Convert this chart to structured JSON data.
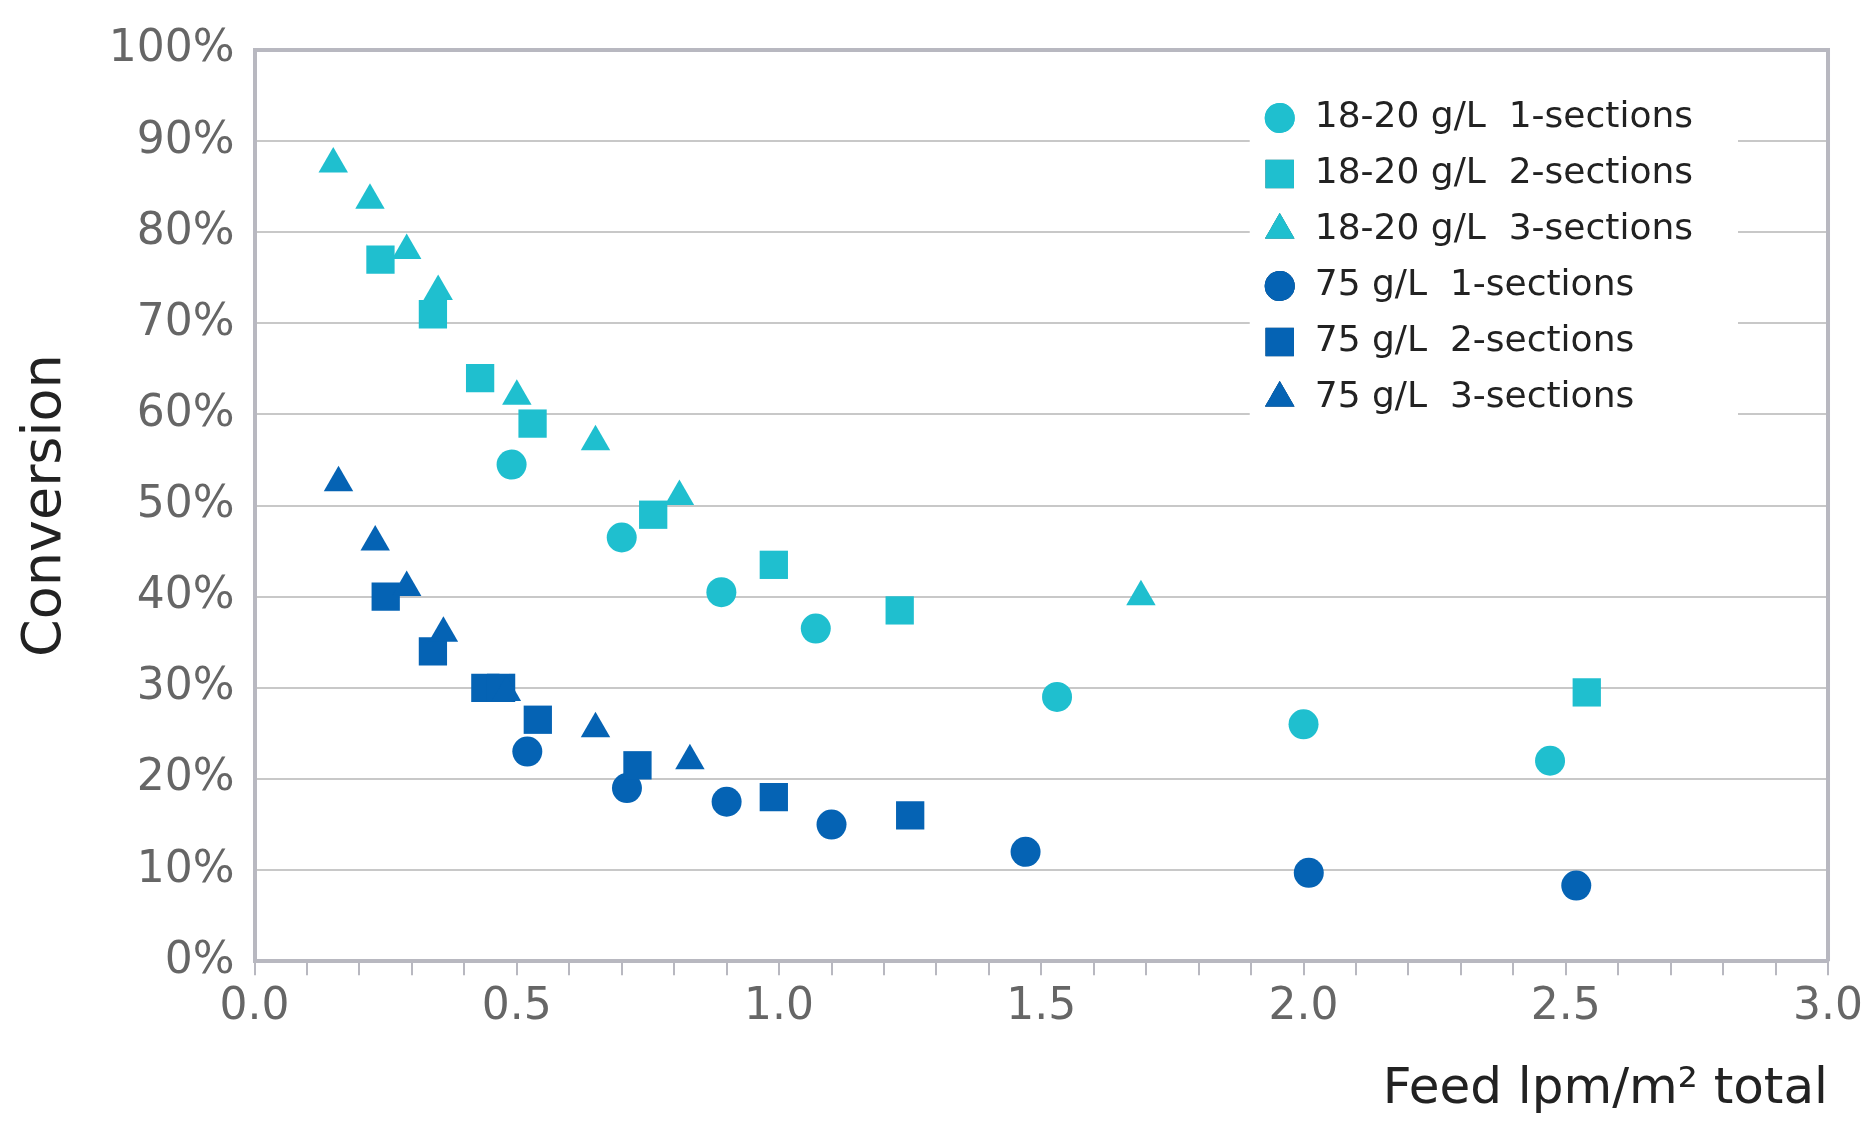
{
  "chart_data": {
    "type": "scatter",
    "xlabel": "Feed lpm/m² total",
    "ylabel": "Conversion",
    "xlim": [
      0,
      3
    ],
    "xticks": [
      {
        "value": 0,
        "label": "0.0"
      },
      {
        "value": 0.1,
        "label": null
      },
      {
        "value": 0.2,
        "label": null
      },
      {
        "value": 0.3,
        "label": null
      },
      {
        "value": 0.4,
        "label": null
      },
      {
        "value": 0.5,
        "label": "0.5"
      },
      {
        "value": 0.6,
        "label": null
      },
      {
        "value": 0.7,
        "label": null
      },
      {
        "value": 0.8,
        "label": null
      },
      {
        "value": 0.9,
        "label": null
      },
      {
        "value": 1,
        "label": "1.0"
      },
      {
        "value": 1.1,
        "label": null
      },
      {
        "value": 1.2,
        "label": null
      },
      {
        "value": 1.3,
        "label": null
      },
      {
        "value": 1.4,
        "label": null
      },
      {
        "value": 1.5,
        "label": "1.5"
      },
      {
        "value": 1.6,
        "label": null
      },
      {
        "value": 1.7,
        "label": null
      },
      {
        "value": 1.8,
        "label": null
      },
      {
        "value": 1.9,
        "label": null
      },
      {
        "value": 2,
        "label": "2.0"
      },
      {
        "value": 2.1,
        "label": null
      },
      {
        "value": 2.2,
        "label": null
      },
      {
        "value": 2.3,
        "label": null
      },
      {
        "value": 2.4,
        "label": null
      },
      {
        "value": 2.5,
        "label": "2.5"
      },
      {
        "value": 2.6,
        "label": null
      },
      {
        "value": 2.7,
        "label": null
      },
      {
        "value": 2.8,
        "label": null
      },
      {
        "value": 2.9,
        "label": null
      },
      {
        "value": 3,
        "label": "3.0"
      }
    ],
    "ylim": [
      0,
      100
    ],
    "yticks": [
      {
        "value": 0,
        "label": "0%"
      },
      {
        "value": 10,
        "label": "10%"
      },
      {
        "value": 20,
        "label": "20%"
      },
      {
        "value": 30,
        "label": "30%"
      },
      {
        "value": 40,
        "label": "40%"
      },
      {
        "value": 50,
        "label": "50%"
      },
      {
        "value": 60,
        "label": "60%"
      },
      {
        "value": 70,
        "label": "70%"
      },
      {
        "value": 80,
        "label": "80%"
      },
      {
        "value": 90,
        "label": "90%"
      },
      {
        "value": 100,
        "label": "100%"
      }
    ],
    "grid": "y",
    "legend": "top right",
    "series": [
      {
        "name": "18-20 g/L  1-sections",
        "color": "#1fbfcf",
        "marker": "circle",
        "x": [
          0.49,
          0.7,
          0.89,
          1.07,
          1.53,
          2.0,
          2.47
        ],
        "values": [
          54.5,
          46.5,
          40.5,
          36.5,
          29,
          26,
          22
        ]
      },
      {
        "name": "18-20 g/L  2-sections",
        "color": "#1fbfcf",
        "marker": "square",
        "x": [
          0.24,
          0.34,
          0.43,
          0.53,
          0.76,
          0.99,
          1.23,
          2.54
        ],
        "values": [
          77,
          71,
          64,
          59,
          49,
          43.5,
          38.5,
          29.5
        ]
      },
      {
        "name": "18-20 g/L  3-sections",
        "color": "#1fbfcf",
        "marker": "triangle",
        "x": [
          0.15,
          0.22,
          0.29,
          0.35,
          0.5,
          0.65,
          0.81,
          1.69
        ],
        "values": [
          87.5,
          83.5,
          78,
          73.5,
          62,
          57,
          51,
          40
        ]
      },
      {
        "name": "75 g/L  1-sections",
        "color": "#0563b4",
        "marker": "circle",
        "x": [
          0.52,
          0.71,
          0.9,
          1.1,
          1.47,
          2.01,
          2.52
        ],
        "values": [
          23,
          19,
          17.5,
          15,
          12,
          9.7,
          8.3
        ]
      },
      {
        "name": "75 g/L  2-sections",
        "color": "#0563b4",
        "marker": "square",
        "x": [
          0.25,
          0.34,
          0.44,
          0.47,
          0.54,
          0.73,
          0.99,
          1.25
        ],
        "values": [
          40,
          34,
          30,
          30,
          26.5,
          21.5,
          18,
          16
        ]
      },
      {
        "name": "75 g/L  3-sections",
        "color": "#0563b4",
        "marker": "triangle",
        "x": [
          0.16,
          0.23,
          0.29,
          0.36,
          0.48,
          0.65,
          0.83
        ],
        "values": [
          52.5,
          46,
          41,
          36,
          29.5,
          25.5,
          22
        ]
      }
    ]
  }
}
